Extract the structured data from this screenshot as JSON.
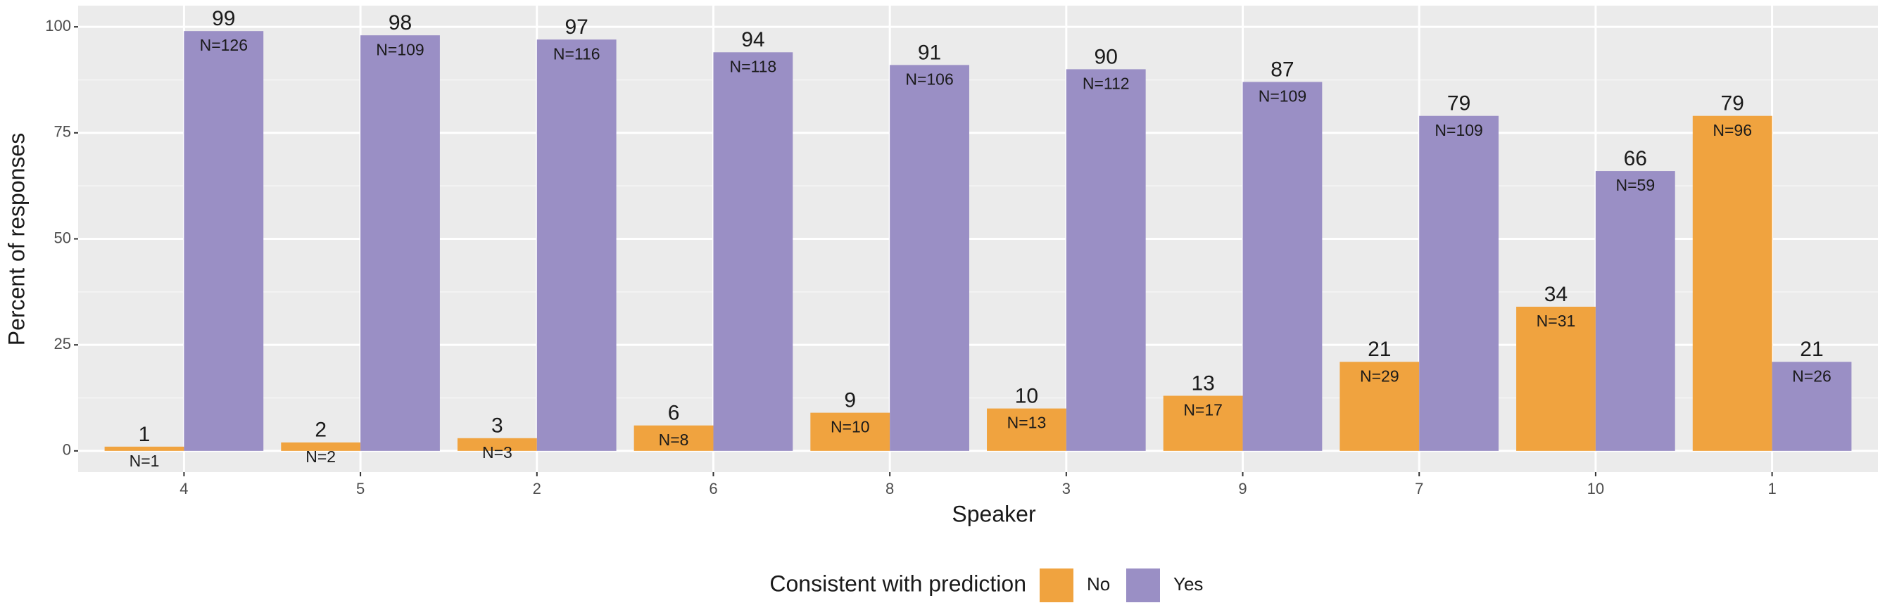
{
  "chart_data": {
    "type": "bar",
    "x_label": "Speaker",
    "y_label": "Percent of responses",
    "categories": [
      "4",
      "5",
      "2",
      "6",
      "8",
      "3",
      "9",
      "7",
      "10",
      "1"
    ],
    "series": [
      {
        "name": "No",
        "color": "#f0a33f",
        "values": [
          1,
          2,
          3,
          6,
          9,
          10,
          13,
          21,
          34,
          79
        ],
        "count_labels": [
          "N=1",
          "N=2",
          "N=3",
          "N=8",
          "N=10",
          "N=13",
          "N=17",
          "N=29",
          "N=31",
          "N=96"
        ]
      },
      {
        "name": "Yes",
        "color": "#9a8fc5",
        "values": [
          99,
          98,
          97,
          94,
          91,
          90,
          87,
          79,
          66,
          21
        ],
        "count_labels": [
          "N=126",
          "N=109",
          "N=116",
          "N=118",
          "N=106",
          "N=112",
          "N=109",
          "N=109",
          "N=59",
          "N=26"
        ]
      }
    ],
    "legend_title": "Consistent with prediction",
    "legend_position": "bottom",
    "ylim": [
      -5,
      105
    ],
    "yticks": [
      0,
      25,
      50,
      75,
      100
    ],
    "grid": true
  }
}
